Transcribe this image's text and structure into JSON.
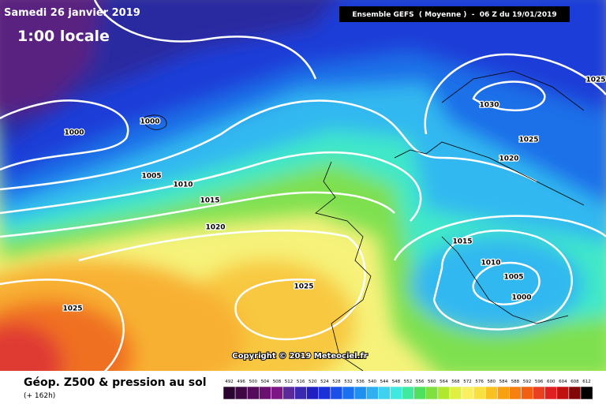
{
  "header": {
    "date": "Samedi 26 janvier 2019",
    "time": "1:00 locale",
    "model": "Ensemble GEFS  ( Moyenne )  -  06 Z du 19/01/2019"
  },
  "isobar_labels": [
    1000,
    1000,
    1005,
    1010,
    1015,
    1020,
    1025,
    1025,
    1030,
    1025,
    1025,
    1020,
    1015,
    1010,
    1005,
    1000
  ],
  "copyright": "Copyright © 2019 Meteociel.fr",
  "footer": {
    "title": "Géop. Z500 & pression au sol",
    "subtitle": "(+ 162h)"
  },
  "legend": {
    "values": [
      492,
      496,
      500,
      504,
      508,
      512,
      516,
      520,
      524,
      528,
      532,
      536,
      540,
      544,
      548,
      552,
      556,
      560,
      564,
      568,
      572,
      576,
      580,
      584,
      588,
      592,
      596,
      600,
      604,
      608,
      612
    ],
    "colors": [
      "#2a0530",
      "#3f0845",
      "#550b5c",
      "#6a1070",
      "#7d1585",
      "#5a2a9a",
      "#3a2ab0",
      "#2020c0",
      "#1a30d8",
      "#1a50e8",
      "#1a70f0",
      "#2090f0",
      "#30b0f0",
      "#40d0f0",
      "#40e8e0",
      "#40e8a0",
      "#50e060",
      "#80e040",
      "#b0e830",
      "#e0f040",
      "#f8f060",
      "#f8e040",
      "#f8c020",
      "#f8a010",
      "#f88010",
      "#f06010",
      "#e84020",
      "#e02020",
      "#c01010",
      "#800808",
      "#000000"
    ]
  }
}
